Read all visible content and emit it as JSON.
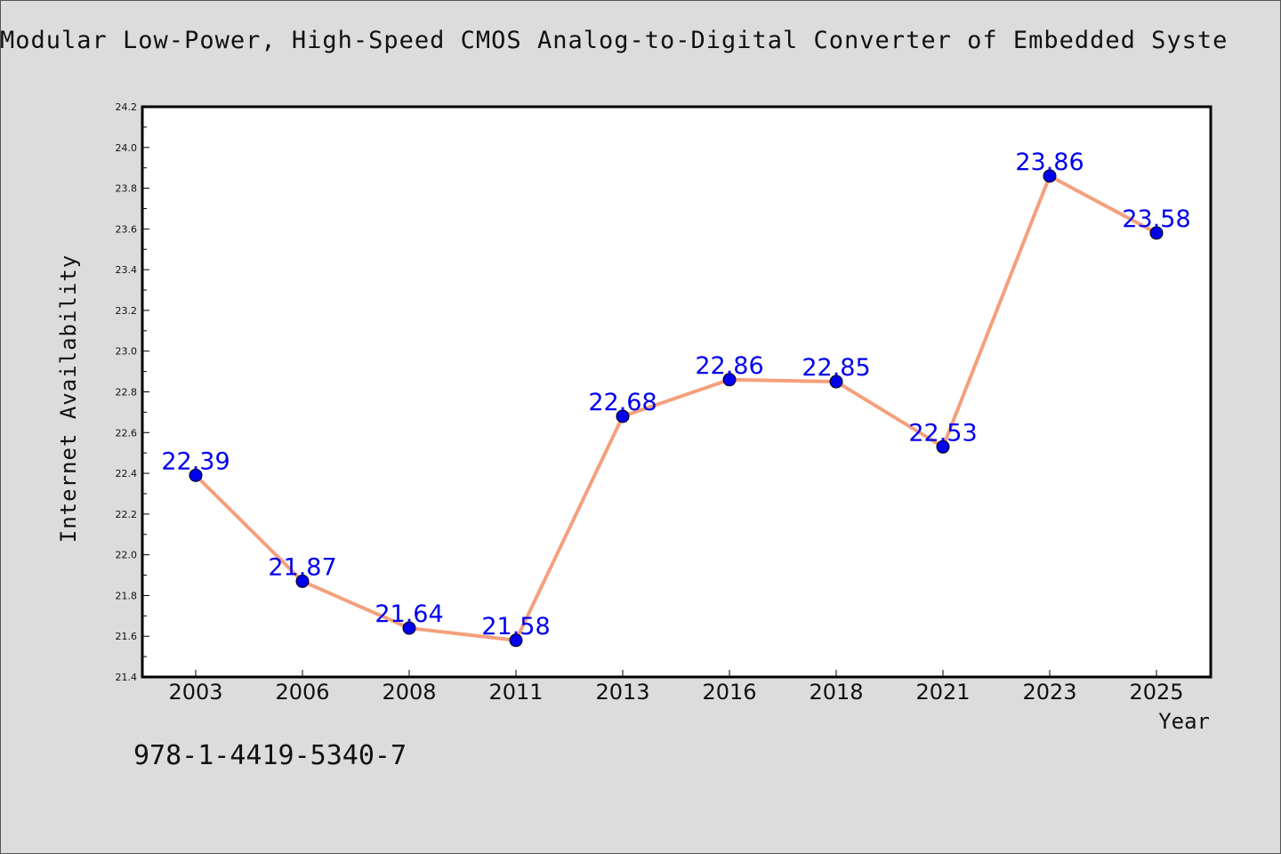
{
  "chart_data": {
    "type": "line",
    "title": "Modular Low-Power, High-Speed CMOS Analog-to-Digital Converter of Embedded Syste",
    "xlabel": "Year",
    "ylabel": "Internet Availability",
    "categories": [
      "2003",
      "2006",
      "2008",
      "2011",
      "2013",
      "2016",
      "2018",
      "2021",
      "2023",
      "2025"
    ],
    "series": [
      {
        "values": [
          22.39,
          21.87,
          21.64,
          21.58,
          22.68,
          22.86,
          22.85,
          22.53,
          23.86,
          23.58
        ]
      }
    ],
    "data_labels": [
      "22.39",
      "21.87",
      "21.64",
      "21.58",
      "22.68",
      "22.86",
      "22.85",
      "22.53",
      "23.86",
      "23.58"
    ],
    "ylim": [
      21.4,
      24.2
    ],
    "y_ticks": [
      "21.4",
      "21.6",
      "21.8",
      "22.0",
      "22.2",
      "22.4",
      "22.6",
      "22.8",
      "23.0",
      "23.2",
      "23.4",
      "23.6",
      "23.8",
      "24.0",
      "24.2"
    ],
    "grid": false,
    "legend": "none"
  },
  "footer": {
    "isbn": "978-1-4419-5340-7"
  },
  "colors": {
    "background": "#dcdcdc",
    "plot_background": "#ffffff",
    "line": "#f4a07c",
    "marker": "#0000ee",
    "data_label": "#0000ee",
    "text": "#111111"
  }
}
